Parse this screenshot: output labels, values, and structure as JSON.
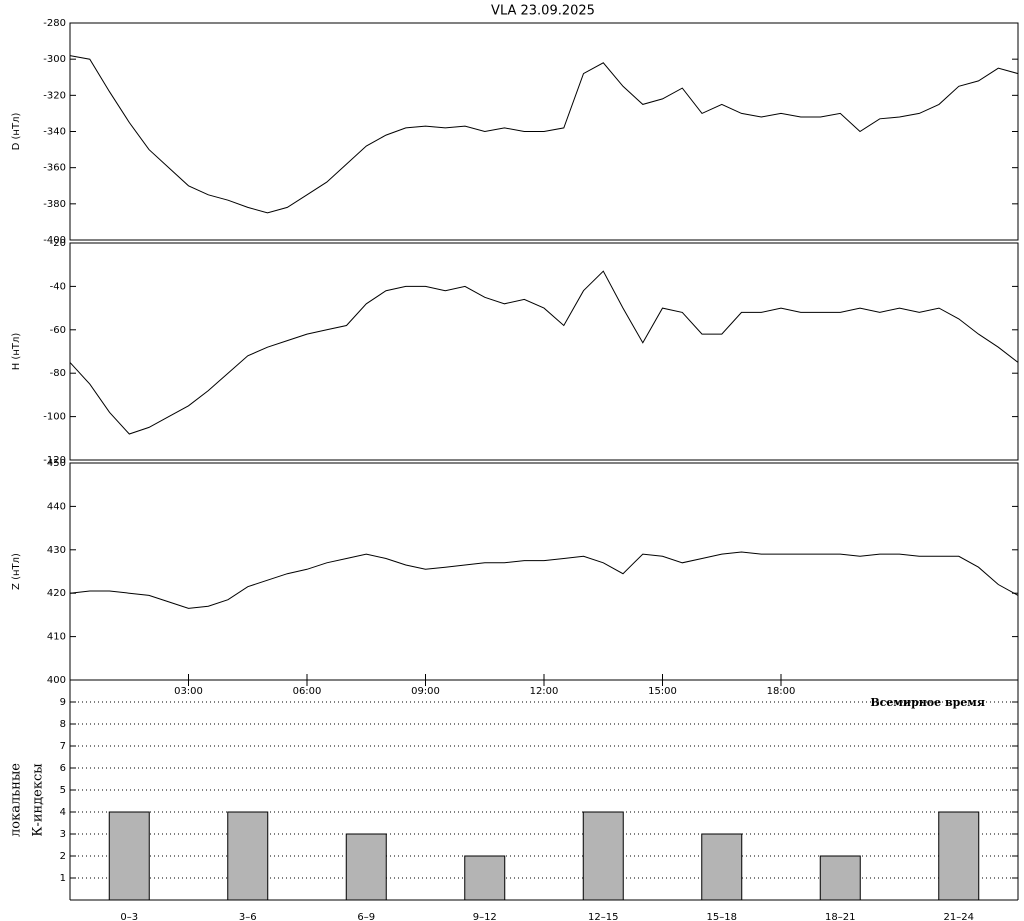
{
  "chart_data": [
    {
      "type": "line",
      "title": "VLA   23.09.2025",
      "ylabel": "D (нТл)",
      "x": [
        0,
        0.5,
        1,
        1.5,
        2,
        2.5,
        3,
        3.5,
        4,
        4.5,
        5,
        5.5,
        6,
        6.5,
        7,
        7.5,
        8,
        8.5,
        9,
        9.5,
        10,
        10.5,
        11,
        11.5,
        12,
        12.5,
        13,
        13.5,
        14,
        14.5,
        15,
        15.5,
        16,
        16.5,
        17,
        17.5,
        18,
        18.5,
        19,
        19.5,
        20,
        20.5,
        21,
        21.5,
        22,
        22.5,
        23,
        23.5,
        24
      ],
      "xlim": [
        0,
        24
      ],
      "color": "#000000",
      "values": [
        -298,
        -300,
        -318,
        -335,
        -350,
        -360,
        -370,
        -375,
        -378,
        -382,
        -385,
        -382,
        -375,
        -368,
        -358,
        -348,
        -342,
        -338,
        -337,
        -338,
        -337,
        -340,
        -338,
        -340,
        -340,
        -338,
        -308,
        -302,
        -315,
        -325,
        -322,
        -316,
        -330,
        -325,
        -330,
        -332,
        -330,
        -332,
        -332,
        -330,
        -340,
        -333,
        -332,
        -330,
        -325,
        -315,
        -312,
        -305,
        -308
      ],
      "ylim": [
        -400,
        -280
      ],
      "yticks": [
        -280,
        -300,
        -320,
        -340,
        -360,
        -380,
        -400
      ]
    },
    {
      "type": "line",
      "ylabel": "H (нТл)",
      "x": [
        0,
        0.5,
        1,
        1.5,
        2,
        2.5,
        3,
        3.5,
        4,
        4.5,
        5,
        5.5,
        6,
        6.5,
        7,
        7.5,
        8,
        8.5,
        9,
        9.5,
        10,
        10.5,
        11,
        11.5,
        12,
        12.5,
        13,
        13.5,
        14,
        14.5,
        15,
        15.5,
        16,
        16.5,
        17,
        17.5,
        18,
        18.5,
        19,
        19.5,
        20,
        20.5,
        21,
        21.5,
        22,
        22.5,
        23,
        23.5,
        24
      ],
      "xlim": [
        0,
        24
      ],
      "color": "#000000",
      "values": [
        -75,
        -85,
        -98,
        -108,
        -105,
        -100,
        -95,
        -88,
        -80,
        -72,
        -68,
        -65,
        -62,
        -60,
        -58,
        -48,
        -42,
        -40,
        -40,
        -42,
        -40,
        -45,
        -48,
        -46,
        -50,
        -58,
        -42,
        -33,
        -50,
        -66,
        -50,
        -52,
        -62,
        -62,
        -52,
        -52,
        -50,
        -52,
        -52,
        -52,
        -50,
        -52,
        -50,
        -52,
        -50,
        -55,
        -62,
        -68,
        -75
      ],
      "ylim": [
        -120,
        -20
      ],
      "yticks": [
        -20,
        -40,
        -60,
        -80,
        -100,
        -120
      ]
    },
    {
      "type": "line",
      "ylabel": "Z (нТл)",
      "xlabel": "Всемирное время",
      "x": [
        0,
        0.5,
        1,
        1.5,
        2,
        2.5,
        3,
        3.5,
        4,
        4.5,
        5,
        5.5,
        6,
        6.5,
        7,
        7.5,
        8,
        8.5,
        9,
        9.5,
        10,
        10.5,
        11,
        11.5,
        12,
        12.5,
        13,
        13.5,
        14,
        14.5,
        15,
        15.5,
        16,
        16.5,
        17,
        17.5,
        18,
        18.5,
        19,
        19.5,
        20,
        20.5,
        21,
        21.5,
        22,
        22.5,
        23,
        23.5,
        24
      ],
      "xlim": [
        0,
        24
      ],
      "color": "#000000",
      "values": [
        420,
        420.5,
        420.5,
        420,
        419.5,
        418,
        416.5,
        417,
        418.5,
        421.5,
        423,
        424.5,
        425.5,
        427,
        428,
        429,
        428,
        426.5,
        425.5,
        426,
        426.5,
        427,
        427,
        427.5,
        427.5,
        428,
        428.5,
        427,
        424.5,
        429,
        428.5,
        427,
        428,
        429,
        429.5,
        429,
        429,
        429,
        429,
        429,
        428.5,
        429,
        429,
        428.5,
        428.5,
        428.5,
        426,
        422,
        419.5
      ],
      "ylim": [
        400,
        450
      ],
      "yticks": [
        400,
        410,
        420,
        430,
        440,
        450
      ],
      "xticks": [
        {
          "value": 3,
          "label": "03:00"
        },
        {
          "value": 6,
          "label": "06:00"
        },
        {
          "value": 9,
          "label": "09:00"
        },
        {
          "value": 12,
          "label": "12:00"
        },
        {
          "value": 15,
          "label": "15:00"
        },
        {
          "value": 18,
          "label": "18:00"
        }
      ]
    },
    {
      "type": "bar",
      "ylabel_lines": [
        "локальные",
        "К-индексы"
      ],
      "categories": [
        "0–3",
        "3–6",
        "6–9",
        "9–12",
        "12–15",
        "15–18",
        "18–21",
        "21–24"
      ],
      "values": [
        4,
        4,
        3,
        2,
        4,
        3,
        2,
        4
      ],
      "color": "#b4b4b4",
      "ylim": [
        0,
        10
      ],
      "yticks": [
        1,
        2,
        3,
        4,
        5,
        6,
        7,
        8,
        9
      ],
      "grid": true
    }
  ]
}
